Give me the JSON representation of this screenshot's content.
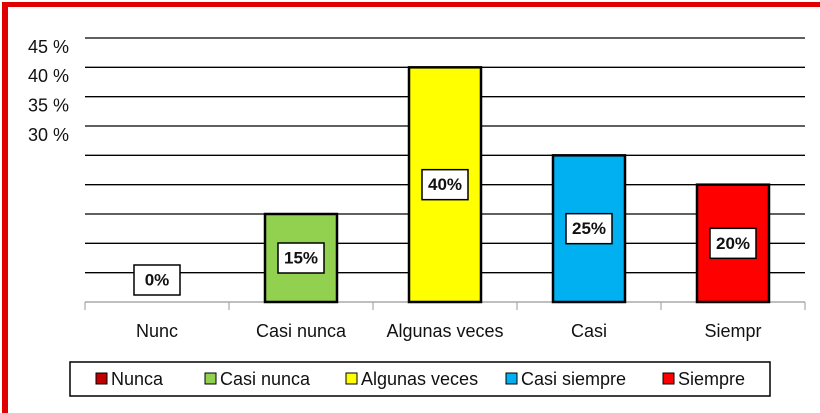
{
  "chart_data": {
    "type": "bar",
    "categories": [
      "Nunc",
      "Casi nunca",
      "Algunas veces",
      "Casi",
      "Siempr"
    ],
    "values": [
      0,
      15,
      40,
      25,
      20
    ],
    "value_labels": [
      "0%",
      "15%",
      "40%",
      "25%",
      "20%"
    ],
    "colors": [
      "#c00000",
      "#92d050",
      "#ffff00",
      "#00b0f0",
      "#ff0000"
    ],
    "legend": [
      "Nunca",
      "Casi nunca",
      "Algunas veces",
      "Casi siempre",
      "Siempre"
    ],
    "ylim": [
      0,
      45
    ],
    "gridlines": [
      0,
      5,
      10,
      15,
      20,
      25,
      30,
      35,
      40,
      45
    ],
    "yticks": [
      {
        "value": 45,
        "label": "45 %"
      },
      {
        "value": 40,
        "label": "40 %"
      },
      {
        "value": 35,
        "label": "35 %"
      },
      {
        "value": 30,
        "label": "30 %"
      }
    ],
    "grid": true,
    "legend_position": "bottom"
  }
}
